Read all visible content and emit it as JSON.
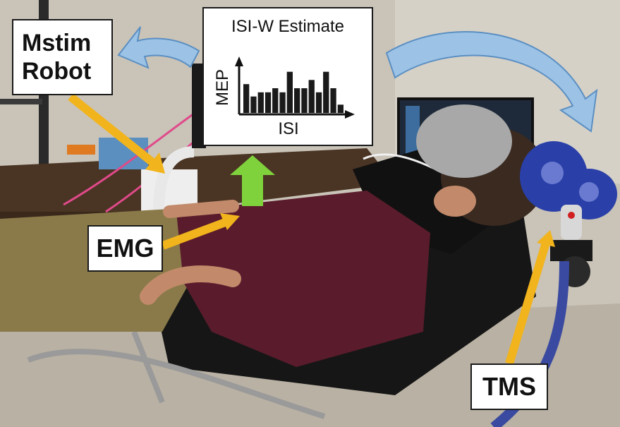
{
  "labels": {
    "mstim_line1": "Mstim",
    "mstim_line2": "Robot",
    "emg": "EMG",
    "tms": "TMS"
  },
  "isi_panel": {
    "title": "ISI-W Estimate"
  },
  "chart_data": {
    "type": "bar",
    "title": "ISI-W Estimate",
    "xlabel": "ISI",
    "ylabel": "MEP",
    "values": [
      3.5,
      2.0,
      2.5,
      2.5,
      3.0,
      2.5,
      5.0,
      3.0,
      3.0,
      4.0,
      2.5,
      5.0,
      3.0,
      1.0
    ],
    "ylim": [
      0,
      6
    ],
    "grid": false,
    "color": "#1a1a1a"
  },
  "colors": {
    "arrow_blue": "#9cc3e6",
    "arrow_blue_edge": "#5b8fc2",
    "arrow_orange": "#f2b41c",
    "arrow_green": "#7fd23c"
  }
}
